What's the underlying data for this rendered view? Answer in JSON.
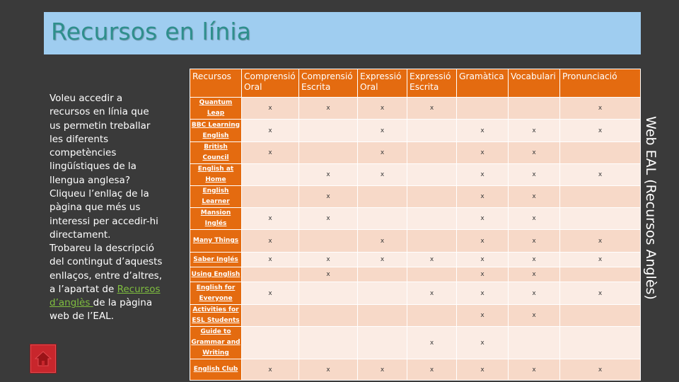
{
  "title": "Recursos en línia",
  "left_text": {
    "p1": "Voleu accedir a recursos en línia que us permetin treballar les diferents competències lingüístiques de la llengua anglesa? Cliqueu l’enllaç de la pàgina que més us interessi per accedir-hi directament.",
    "p2_before": "Trobareu la descripció del contingut d’aquests enllaços, entre d’altres, a l’apartat de ",
    "p2_link": "Recursos d’anglès ",
    "p2_after": "de la pàgina web de l’EAL."
  },
  "side_label": "Web EAL (Recursos Anglès)",
  "home_icon": "home-icon",
  "colors": {
    "accent": "#e46b10",
    "title": "#2e8f8c",
    "title_bg": "#9fcdf0",
    "link": "#7fbf3f"
  },
  "table": {
    "headers": [
      "Recursos",
      "Comprensió Oral",
      "Comprensió Escrita",
      "Expressió Oral",
      "Expressió Escrita",
      "Gramàtica",
      "Vocabulari",
      "Pronunciació"
    ],
    "rows": [
      {
        "name": "Quantum Leap",
        "marks": [
          "x",
          "x",
          "x",
          "x",
          "",
          "",
          "x"
        ]
      },
      {
        "name": "BBC Learning English",
        "marks": [
          "x",
          "",
          "x",
          "",
          "x",
          "x",
          "x"
        ]
      },
      {
        "name": "British Council",
        "marks": [
          "x",
          "",
          "x",
          "",
          "x",
          "x",
          ""
        ]
      },
      {
        "name": "English at Home",
        "marks": [
          "",
          "x",
          "x",
          "",
          "x",
          "x",
          "x"
        ]
      },
      {
        "name": "English Learner",
        "marks": [
          "",
          "x",
          "",
          "",
          "x",
          "x",
          ""
        ]
      },
      {
        "name": "Mansion Inglés",
        "marks": [
          "x",
          "x",
          "",
          "",
          "x",
          "x",
          ""
        ]
      },
      {
        "name": "Many Things",
        "marks": [
          "x",
          "",
          "x",
          "",
          "x",
          "x",
          "x"
        ]
      },
      {
        "name": "Saber Inglés",
        "marks": [
          "x",
          "x",
          "x",
          "x",
          "x",
          "x",
          "x"
        ]
      },
      {
        "name": "Using English",
        "marks": [
          "",
          "x",
          "",
          "",
          "x",
          "x",
          ""
        ]
      },
      {
        "name": "English for Everyone",
        "marks": [
          "x",
          "",
          "",
          "x",
          "x",
          "x",
          "x"
        ]
      },
      {
        "name": "Activities for ESL Students",
        "marks": [
          "",
          "",
          "",
          "",
          "x",
          "x",
          ""
        ]
      },
      {
        "name": "Guide to Grammar and Writing",
        "marks": [
          "",
          "",
          "",
          "x",
          "x",
          "",
          ""
        ]
      },
      {
        "name": "English Club",
        "marks": [
          "x",
          "x",
          "x",
          "x",
          "x",
          "x",
          "x"
        ]
      }
    ]
  }
}
